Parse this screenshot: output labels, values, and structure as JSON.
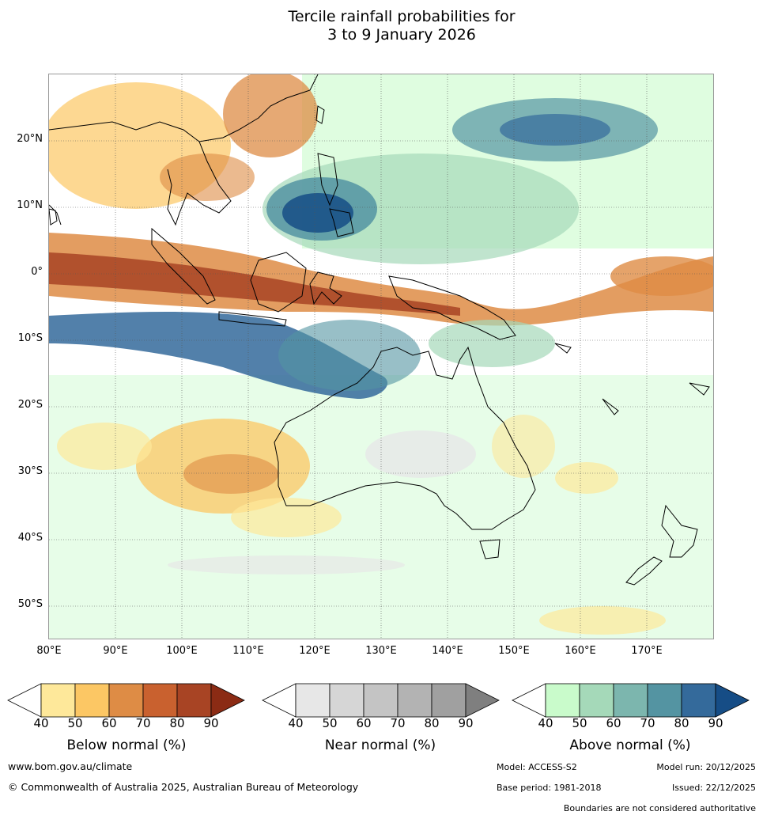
{
  "title": {
    "line1": "Tercile rainfall probabilities for",
    "line2": "3 to 9 January 2026"
  },
  "map": {
    "region": "Australia and surrounding regions",
    "lat_labels": [
      "20°N",
      "10°N",
      "0°",
      "10°S",
      "20°S",
      "30°S",
      "40°S",
      "50°S"
    ],
    "lon_labels": [
      "80°E",
      "90°E",
      "100°E",
      "110°E",
      "120°E",
      "130°E",
      "140°E",
      "150°E",
      "160°E",
      "170°E"
    ]
  },
  "legends": [
    {
      "id": "below",
      "title": "Below normal (%)",
      "ticks": [
        "40",
        "50",
        "60",
        "70",
        "80",
        "90"
      ],
      "colors": [
        "#ffffff",
        "#fee89a",
        "#fcc764",
        "#de8c45",
        "#c9612f",
        "#a84424",
        "#8b2b14"
      ]
    },
    {
      "id": "near",
      "title": "Near normal (%)",
      "ticks": [
        "40",
        "50",
        "60",
        "70",
        "80",
        "90"
      ],
      "colors": [
        "#ffffff",
        "#e7e7e7",
        "#d6d6d6",
        "#c4c4c4",
        "#b3b3b3",
        "#a0a0a0",
        "#7f7f7f"
      ]
    },
    {
      "id": "above",
      "title": "Above normal (%)",
      "ticks": [
        "40",
        "50",
        "60",
        "70",
        "80",
        "90"
      ],
      "colors": [
        "#ffffff",
        "#c9fbcb",
        "#a5d9b9",
        "#7cb6ae",
        "#5494a2",
        "#346a9b",
        "#164d86"
      ]
    }
  ],
  "footer": {
    "website": "www.bom.gov.au/climate",
    "copyright": "© Commonwealth of Australia 2025, Australian Bureau of Meteorology",
    "model": "Model: ACCESS-S2",
    "model_run": "Model run: 20/12/2025",
    "base_period": "Base period: 1981-2018",
    "issued": "Issued: 22/12/2025",
    "disclaimer": "Boundaries are not considered authoritative"
  }
}
